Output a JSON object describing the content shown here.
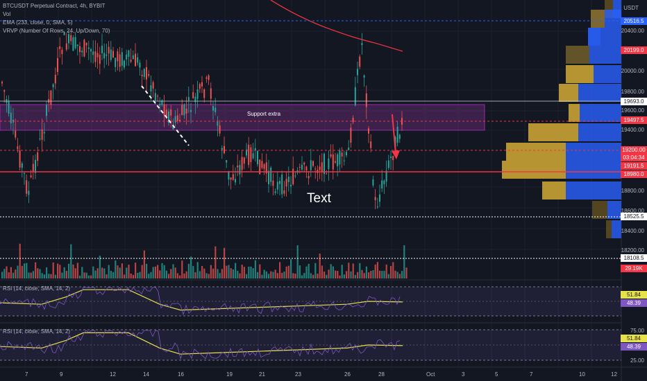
{
  "legend": {
    "symbol": "BTCUSDT Perpetual Contract, 4h, BYBIT",
    "vol": "Vol",
    "ema": "EMA (233, close, 0, SMA, 5)",
    "vrvp": "VRVP (Number Of Rows, 24, Up/Down, 70)"
  },
  "currency": "USDT",
  "price_axis": [
    "20400.00",
    "20000.00",
    "19800.00",
    "19600.00",
    "19400.00",
    "18800.00",
    "18600.00",
    "18400.00",
    "18200.00"
  ],
  "price_tags": [
    {
      "text": "20516.5",
      "color": "#2962ff"
    },
    {
      "text": "20199.0",
      "color": "#f23645"
    },
    {
      "text": "19693.0",
      "color": "#ffffff",
      "fg": "#131722"
    },
    {
      "text": "19497.5",
      "color": "#f23645"
    },
    {
      "text": "19200.00",
      "color": "#f23645"
    },
    {
      "text": "03:04:34",
      "color": "#f23645"
    },
    {
      "text": "19191.5",
      "color": "#f23645"
    },
    {
      "text": "18980.0",
      "color": "#f23645"
    },
    {
      "text": "18525.5",
      "color": "#ffffff",
      "fg": "#131722"
    },
    {
      "text": "18108.5",
      "color": "#ffffff",
      "fg": "#131722"
    },
    {
      "text": "29.19K",
      "color": "#f23645"
    }
  ],
  "rsi1": {
    "label": "RSI (14, close, SMA, 14, 2)",
    "v1": "51.84",
    "v2": "48.39"
  },
  "rsi2": {
    "label": "RSI (14, close, SMA, 14, 2)",
    "v1": "51.84",
    "v2": "48.39",
    "top": "75.00",
    "bottom": "25.00"
  },
  "x_labels": [
    "7",
    "9",
    "12",
    "14",
    "16",
    "19",
    "21",
    "23",
    "26",
    "28",
    "Oct",
    "3",
    "5",
    "7",
    "10",
    "12"
  ],
  "annotations": {
    "support_box": "Support extra",
    "text": "Text"
  },
  "colors": {
    "up": "#26a69a",
    "down": "#ef5350",
    "ema": "#e03340",
    "support": "#7b2c8a",
    "rsi": "#e8e24a",
    "rsi_signal": "#7e57c2",
    "vp_up": "#2962ff",
    "vp_down": "#c8a233"
  }
}
